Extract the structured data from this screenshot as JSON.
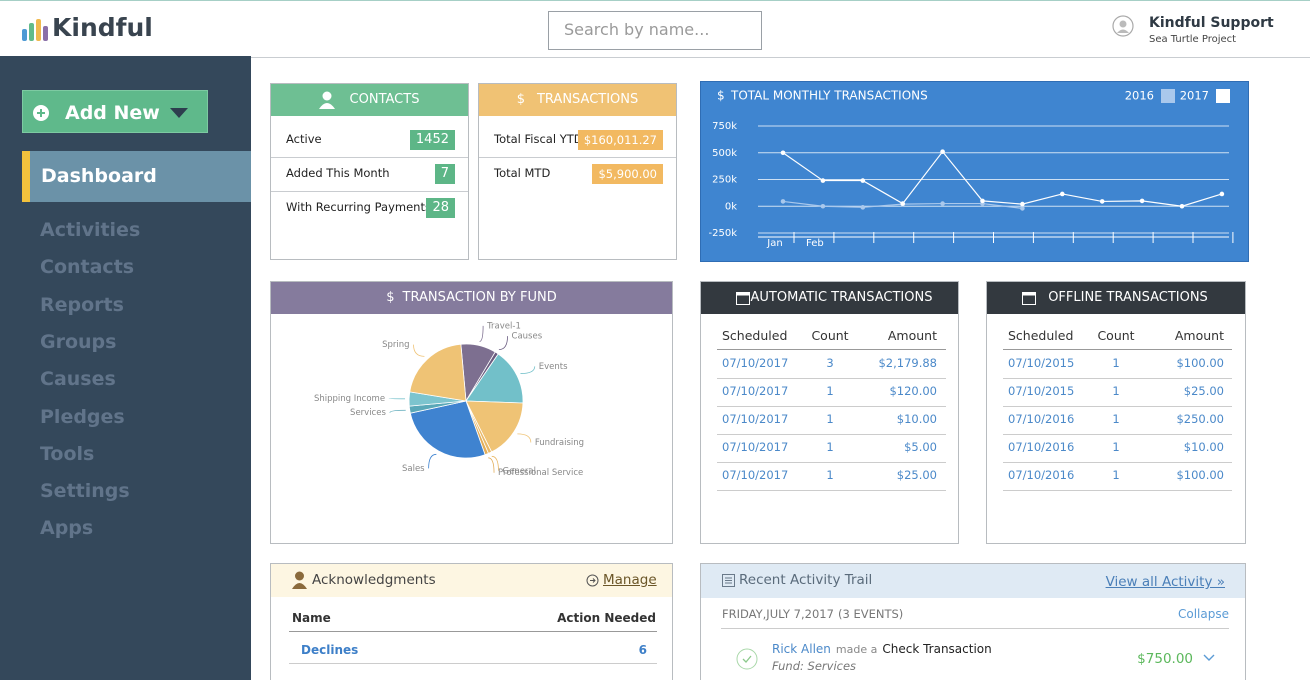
{
  "header": {
    "logo": "Kindful",
    "search_placeholder": "Search by name...",
    "user_name": "Kindful Support",
    "user_org": "Sea Turtle Project"
  },
  "sidebar": {
    "add_new": "Add New",
    "active": "Dashboard",
    "items": [
      "Activities",
      "Contacts",
      "Reports",
      "Groups",
      "Causes",
      "Pledges",
      "Tools",
      "Settings",
      "Apps"
    ]
  },
  "contacts": {
    "title": "CONTACTS",
    "rows": [
      {
        "label": "Active",
        "value": 1452
      },
      {
        "label": "Added This Month",
        "value": 7
      },
      {
        "label": "With Recurring Payments",
        "value": 28
      }
    ]
  },
  "transactions": {
    "icon": "$",
    "title": "TRANSACTIONS",
    "rows": [
      {
        "label": "Total Fiscal YTD",
        "value": "$160,011.27"
      },
      {
        "label": "Total MTD",
        "value": "$5,900.00"
      }
    ]
  },
  "chart_data": [
    {
      "type": "line",
      "title_icon": "$",
      "title": "TOTAL MONTHLY TRANSACTIONS",
      "categories": [
        "Jan",
        "Feb",
        null,
        null,
        null,
        null,
        null,
        null,
        null,
        null,
        null,
        null
      ],
      "ylim": [
        -250000,
        750000
      ],
      "yticks": [
        {
          "value": 750000,
          "label": "750k"
        },
        {
          "value": 500000,
          "label": "500k"
        },
        {
          "value": 250000,
          "label": "250k"
        },
        {
          "value": 0,
          "label": "0k"
        },
        {
          "value": -250000,
          "label": "-250k"
        }
      ],
      "grid": true,
      "series": [
        {
          "name": "2016",
          "color": "#a9c8ec",
          "values": [
            45000,
            0,
            -10000,
            20000,
            25000,
            25000,
            -20000,
            null,
            null,
            null,
            null,
            null
          ]
        },
        {
          "name": "2017",
          "color": "#ffffff",
          "values": [
            500000,
            240000,
            240000,
            25000,
            510000,
            50000,
            20000,
            115000,
            45000,
            50000,
            0,
            115000
          ]
        }
      ]
    },
    {
      "type": "pie",
      "title_icon": "$",
      "title": "TRANSACTION BY FUND",
      "categories": [
        "Travel-1",
        "Causes",
        "Events",
        "Fundraising",
        "General",
        "Professional Service",
        "Sales",
        "Services",
        "Shipping Income",
        "Spring"
      ],
      "values": [
        10,
        1,
        16,
        17,
        1,
        1,
        27,
        2,
        4,
        21
      ],
      "colors": [
        "#7d6f90",
        "#6a5c80",
        "#72c0c9",
        "#efc375",
        "#e9b968",
        "#e2ad58",
        "#3f83d0",
        "#5aa8b8",
        "#7cc4ce",
        "#efc375"
      ]
    }
  ],
  "automatic": {
    "title": "AUTOMATIC TRANSACTIONS",
    "columns": [
      "Scheduled",
      "Count",
      "Amount"
    ],
    "rows": [
      [
        "07/10/2017",
        3,
        "$2,179.88"
      ],
      [
        "07/10/2017",
        1,
        "$120.00"
      ],
      [
        "07/10/2017",
        1,
        "$10.00"
      ],
      [
        "07/10/2017",
        1,
        "$5.00"
      ],
      [
        "07/10/2017",
        1,
        "$25.00"
      ]
    ]
  },
  "offline": {
    "title": "OFFLINE TRANSACTIONS",
    "columns": [
      "Scheduled",
      "Count",
      "Amount"
    ],
    "rows": [
      [
        "07/10/2015",
        1,
        "$100.00"
      ],
      [
        "07/10/2015",
        1,
        "$25.00"
      ],
      [
        "07/10/2016",
        1,
        "$250.00"
      ],
      [
        "07/10/2016",
        1,
        "$10.00"
      ],
      [
        "07/10/2016",
        1,
        "$100.00"
      ]
    ]
  },
  "acknowledgments": {
    "title": "Acknowledgments",
    "action": "Manage",
    "columns": [
      "Name",
      "Action Needed"
    ],
    "rows": [
      [
        "Declines",
        6
      ]
    ]
  },
  "activity": {
    "title": "Recent Activity Trail",
    "view_all": "View all Activity »",
    "date": "FRIDAY,JULY 7,2017",
    "events": "(3 EVENTS)",
    "collapse": "Collapse",
    "entries": [
      {
        "person": "Rick Allen",
        "verb": "made a",
        "item": "Check Transaction",
        "fund": "Fund: Services",
        "amount": "$750.00"
      }
    ]
  }
}
